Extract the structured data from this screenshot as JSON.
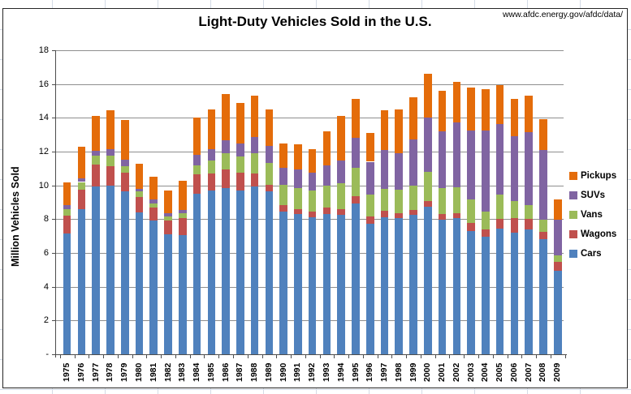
{
  "source_note": "www.afdc.energy.gov/afdc/data/",
  "chart_data": {
    "type": "bar",
    "stacked": true,
    "title": "Light-Duty Vehicles Sold in the U.S.",
    "xlabel": "",
    "ylabel": "Million Vehicles Sold",
    "ylim": [
      0,
      18
    ],
    "ytick_step": 2,
    "y_tick_labels": [
      "18",
      "16",
      "14",
      "12",
      "10",
      "8",
      "6",
      "4",
      "2",
      "-"
    ],
    "grid": true,
    "legend_position": "right",
    "legend_order_top_to_bottom": [
      "Pickups",
      "SUVs",
      "Vans",
      "Wagons",
      "Cars"
    ],
    "categories": [
      "1975",
      "1976",
      "1977",
      "1978",
      "1979",
      "1980",
      "1981",
      "1982",
      "1983",
      "1984",
      "1985",
      "1986",
      "1987",
      "1988",
      "1989",
      "1990",
      "1991",
      "1992",
      "1993",
      "1994",
      "1995",
      "1996",
      "1997",
      "1998",
      "1999",
      "2000",
      "2001",
      "2002",
      "2003",
      "2004",
      "2005",
      "2006",
      "2007",
      "2008",
      "2009"
    ],
    "series": [
      {
        "name": "Cars",
        "color": "#4F81BD",
        "values": [
          7.15,
          8.6,
          9.95,
          10.0,
          9.65,
          8.4,
          7.9,
          7.1,
          7.05,
          9.5,
          9.7,
          9.85,
          9.7,
          9.95,
          9.65,
          8.45,
          8.3,
          8.1,
          8.3,
          8.25,
          8.95,
          7.75,
          8.1,
          8.05,
          8.25,
          8.75,
          7.95,
          8.05,
          7.3,
          6.95,
          7.45,
          7.2,
          7.4,
          6.8,
          4.95
        ]
      },
      {
        "name": "Wagons",
        "color": "#C0504D",
        "values": [
          1.05,
          1.15,
          1.3,
          1.15,
          1.1,
          0.9,
          0.8,
          0.8,
          1.0,
          1.15,
          1.0,
          1.1,
          1.05,
          0.75,
          0.4,
          0.4,
          0.3,
          0.35,
          0.4,
          0.35,
          0.4,
          0.4,
          0.4,
          0.3,
          0.3,
          0.3,
          0.35,
          0.3,
          0.5,
          0.45,
          0.55,
          0.85,
          0.6,
          0.45,
          0.5
        ]
      },
      {
        "name": "Vans",
        "color": "#9BBB59",
        "values": [
          0.4,
          0.45,
          0.5,
          0.6,
          0.4,
          0.35,
          0.25,
          0.25,
          0.3,
          0.55,
          0.75,
          0.95,
          0.95,
          1.2,
          1.3,
          1.2,
          1.25,
          1.25,
          1.3,
          1.55,
          1.7,
          1.3,
          1.3,
          1.4,
          1.45,
          1.75,
          1.55,
          1.55,
          1.35,
          1.05,
          1.45,
          1.0,
          0.85,
          0.7,
          0.4
        ]
      },
      {
        "name": "SUVs",
        "color": "#8064A2",
        "values": [
          0.25,
          0.2,
          0.3,
          0.4,
          0.35,
          0.15,
          0.2,
          0.2,
          0.2,
          0.6,
          0.7,
          0.75,
          0.8,
          0.95,
          1.0,
          1.0,
          1.1,
          1.05,
          1.2,
          1.3,
          1.75,
          1.95,
          2.3,
          2.15,
          2.7,
          3.2,
          3.35,
          3.85,
          4.1,
          4.8,
          4.2,
          3.85,
          4.3,
          4.15,
          2.1
        ]
      },
      {
        "name": "Pickups",
        "color": "#E46C0A",
        "values": [
          1.35,
          1.9,
          2.05,
          2.3,
          2.35,
          1.5,
          1.35,
          1.35,
          1.7,
          2.2,
          2.35,
          2.75,
          2.4,
          2.45,
          2.15,
          1.45,
          1.5,
          1.4,
          2.0,
          2.65,
          2.3,
          1.7,
          2.35,
          2.6,
          2.5,
          2.6,
          2.4,
          2.4,
          2.55,
          2.45,
          2.3,
          2.2,
          2.15,
          1.8,
          1.2
        ]
      }
    ]
  }
}
